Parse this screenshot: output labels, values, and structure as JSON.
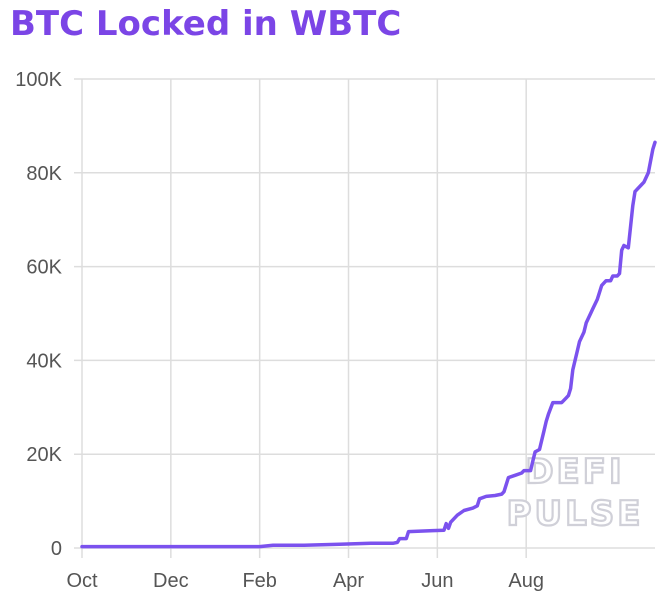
{
  "title": "BTC Locked in WBTC",
  "colors": {
    "title": "#7b45e6",
    "line": "#7b52ee",
    "grid": "#dddddd",
    "axis_text": "#555555",
    "watermark_outline": "#d0d0d8"
  },
  "watermark": {
    "line1": "DEFI",
    "line2": "PULSE"
  },
  "chart_data": {
    "type": "line",
    "title": "BTC Locked in WBTC",
    "xlabel": "",
    "ylabel": "",
    "grid": true,
    "legend": "none",
    "ylim": [
      0,
      100000
    ],
    "xlim": [
      0,
      12.9
    ],
    "y_ticks": [
      {
        "value": 0,
        "label": "0"
      },
      {
        "value": 20000,
        "label": "20K"
      },
      {
        "value": 40000,
        "label": "40K"
      },
      {
        "value": 60000,
        "label": "60K"
      },
      {
        "value": 80000,
        "label": "80K"
      },
      {
        "value": 100000,
        "label": "100K"
      }
    ],
    "x_ticks": [
      {
        "value": 0,
        "label": "Oct"
      },
      {
        "value": 2,
        "label": "Dec"
      },
      {
        "value": 4,
        "label": "Feb"
      },
      {
        "value": 6,
        "label": "Apr"
      },
      {
        "value": 8,
        "label": "Jun"
      },
      {
        "value": 10,
        "label": "Aug"
      }
    ],
    "series": [
      {
        "x": [
          0,
          2,
          4,
          4.3,
          5,
          5.8,
          6.5,
          7,
          7.1,
          7.15,
          7.3,
          7.35,
          7.9,
          8.15,
          8.2,
          8.25,
          8.3,
          8.45,
          8.6,
          8.8,
          8.9,
          8.95,
          9.1,
          9.3,
          9.45,
          9.5,
          9.55,
          9.6,
          9.75,
          9.9,
          9.95,
          10.1,
          10.15,
          10.2,
          10.3,
          10.4,
          10.45,
          10.5,
          10.6,
          10.7,
          10.8,
          10.85,
          10.9,
          10.95,
          11,
          11.05,
          11.15,
          11.2,
          11.3,
          11.35,
          11.45,
          11.5,
          11.6,
          11.65,
          11.7,
          11.8,
          11.9,
          11.95,
          12.05,
          12.1,
          12.15,
          12.2,
          12.3,
          12.4,
          12.45,
          12.6,
          12.65,
          12.7,
          12.75,
          12.85,
          12.9
        ],
        "y": [
          300,
          300,
          300,
          600,
          600,
          800,
          1000,
          1000,
          1200,
          2000,
          2000,
          3500,
          3700,
          3800,
          5200,
          4200,
          5500,
          7000,
          8000,
          8500,
          9000,
          10500,
          11000,
          11200,
          11500,
          12000,
          13500,
          15000,
          15500,
          16000,
          16500,
          16500,
          18500,
          20500,
          21000,
          25000,
          27000,
          28500,
          31000,
          31000,
          31000,
          31500,
          32000,
          32500,
          34000,
          38000,
          42000,
          44000,
          46000,
          48000,
          50000,
          51000,
          53000,
          54500,
          56000,
          57000,
          57000,
          58000,
          58000,
          58500,
          63500,
          64500,
          64000,
          73000,
          76000,
          77500,
          78000,
          79000,
          80000,
          85000,
          86500
        ]
      }
    ]
  }
}
